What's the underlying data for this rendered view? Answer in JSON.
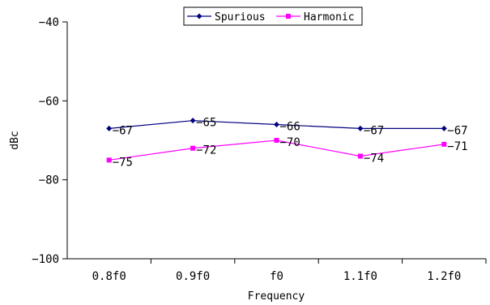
{
  "chart_data": {
    "type": "line",
    "title": "",
    "xlabel": "Frequency",
    "ylabel": "dBc",
    "categories": [
      "0.8f0",
      "0.9f0",
      "f0",
      "1.1f0",
      "1.2f0"
    ],
    "ylim": [
      -100,
      -40
    ],
    "yticks": [
      -40,
      -60,
      -80,
      -100
    ],
    "yticks_labels": [
      "−40",
      "−60",
      "−80",
      "−100"
    ],
    "grid": false,
    "legend": "top-center",
    "series": [
      {
        "name": "Spurious",
        "values": [
          -67,
          -65,
          -66,
          -67,
          -67
        ],
        "labels": [
          "−67",
          "−65",
          "−66",
          "−67",
          "−67"
        ],
        "color": "#000080",
        "marker": "diamond"
      },
      {
        "name": "Harmonic",
        "values": [
          -75,
          -72,
          -70,
          -74,
          -71
        ],
        "labels": [
          "−75",
          "−72",
          "−70",
          "−74",
          "−71"
        ],
        "color": "#ff00ff",
        "marker": "square"
      }
    ]
  }
}
